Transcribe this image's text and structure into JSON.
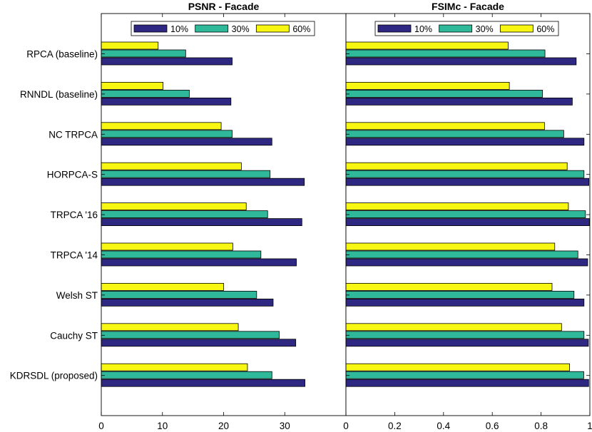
{
  "chart_data": [
    {
      "type": "bar",
      "orientation": "horizontal",
      "title": "PSNR - Facade",
      "xlim": [
        0,
        40
      ],
      "xticks": [
        "0",
        "10",
        "20",
        "30"
      ],
      "categories": [
        "RPCA (baseline)",
        "RNNDL (baseline)",
        "NC TRPCA",
        "HORPCA-S",
        "TRPCA '16",
        "TRPCA '14",
        "Welsh ST",
        "Cauchy ST",
        "KDRSDL (proposed)"
      ],
      "series": [
        {
          "name": "10%",
          "color": "#2e2883",
          "values": [
            21.4,
            21.2,
            27.9,
            33.2,
            32.8,
            31.9,
            28.1,
            31.8,
            33.3
          ]
        },
        {
          "name": "30%",
          "color": "#2fb99a",
          "values": [
            13.8,
            14.4,
            21.4,
            27.6,
            27.2,
            26.1,
            25.4,
            29.1,
            27.9
          ]
        },
        {
          "name": "60%",
          "color": "#f7f711",
          "values": [
            9.3,
            10.1,
            19.6,
            22.9,
            23.7,
            21.5,
            20.0,
            22.4,
            23.9
          ]
        }
      ],
      "legend_position": "top-center"
    },
    {
      "type": "bar",
      "orientation": "horizontal",
      "title": "FSIMc - Facade",
      "xlim": [
        0,
        1
      ],
      "xticks": [
        "0",
        "0.2",
        "0.4",
        "0.6",
        "0.8",
        "1"
      ],
      "categories": [
        "RPCA (baseline)",
        "RNNDL (baseline)",
        "NC TRPCA",
        "HORPCA-S",
        "TRPCA '16",
        "TRPCA '14",
        "Welsh ST",
        "Cauchy ST",
        "KDRSDL (proposed)"
      ],
      "series": [
        {
          "name": "10%",
          "color": "#2e2883",
          "values": [
            0.944,
            0.928,
            0.976,
            0.996,
            0.998,
            0.991,
            0.976,
            0.994,
            0.995
          ]
        },
        {
          "name": "30%",
          "color": "#2fb99a",
          "values": [
            0.816,
            0.806,
            0.893,
            0.976,
            0.982,
            0.951,
            0.935,
            0.976,
            0.975
          ]
        },
        {
          "name": "60%",
          "color": "#f7f711",
          "values": [
            0.665,
            0.67,
            0.814,
            0.907,
            0.912,
            0.856,
            0.845,
            0.884,
            0.917
          ]
        }
      ],
      "legend_position": "top-center"
    }
  ]
}
